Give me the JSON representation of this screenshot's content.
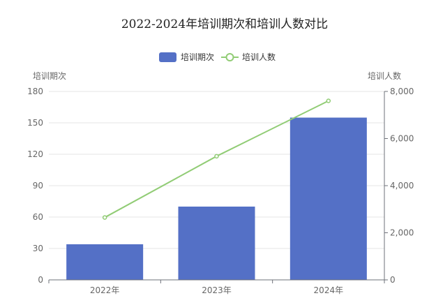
{
  "chart_data": {
    "type": "bar",
    "title": "2022-2024年培训期次和培训人数对比",
    "categories": [
      "2022年",
      "2023年",
      "2024年"
    ],
    "series": [
      {
        "name": "培训期次",
        "type": "bar",
        "axis": "left",
        "color": "#5470c6",
        "values": [
          34,
          70,
          155
        ]
      },
      {
        "name": "培训人数",
        "type": "line",
        "axis": "right",
        "color": "#91cc75",
        "values": [
          2650,
          5250,
          7600
        ]
      }
    ],
    "y_left": {
      "label": "培训期次",
      "ylim": [
        0,
        180
      ],
      "ticks": [
        "0",
        "30",
        "60",
        "90",
        "120",
        "150",
        "180"
      ]
    },
    "y_right": {
      "label": "培训人数",
      "ylim": [
        0,
        8000
      ],
      "ticks": [
        "0",
        "2,000",
        "4,000",
        "6,000",
        "8,000"
      ]
    },
    "grid": true,
    "legend_position": "top-center"
  }
}
